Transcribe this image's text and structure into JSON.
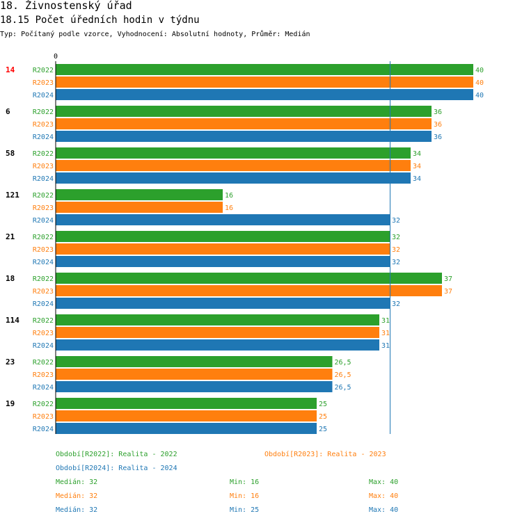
{
  "header": {
    "title": "18. Živnostenský úřad",
    "subtitle": "18.15 Počet úředních hodin v týdnu",
    "meta": "Typ: Počítaný podle vzorce, Vyhodnocení: Absolutní hodnoty, Průměr: Medián"
  },
  "colors": {
    "R2022": "#2ca02c",
    "R2023": "#ff7f0e",
    "R2024": "#1f77b4",
    "highlight": "#ff0000",
    "axis": "#000000"
  },
  "chart_data": {
    "type": "bar",
    "orientation": "horizontal",
    "axis_zero_label": "0",
    "xlim": [
      0,
      40
    ],
    "median_line": 32,
    "series_names": [
      "R2022",
      "R2023",
      "R2024"
    ],
    "categories": [
      "14",
      "6",
      "58",
      "121",
      "21",
      "18",
      "114",
      "23",
      "19"
    ],
    "highlighted_category": "14",
    "series": [
      {
        "name": "R2022",
        "values": [
          40,
          36,
          34,
          16,
          32,
          37,
          31,
          26.5,
          25
        ],
        "labels": [
          "40",
          "36",
          "34",
          "16",
          "32",
          "37",
          "31",
          "26,5",
          "25"
        ]
      },
      {
        "name": "R2023",
        "values": [
          40,
          36,
          34,
          16,
          32,
          37,
          31,
          26.5,
          25
        ],
        "labels": [
          "40",
          "36",
          "34",
          "16",
          "32",
          "37",
          "31",
          "26,5",
          "25"
        ]
      },
      {
        "name": "R2024",
        "values": [
          40,
          36,
          34,
          32,
          32,
          32,
          31,
          26.5,
          25
        ],
        "labels": [
          "40",
          "36",
          "34",
          "32",
          "32",
          "32",
          "31",
          "26,5",
          "25"
        ]
      }
    ]
  },
  "legend": {
    "periods": [
      {
        "text": "Období[R2022]: Realita - 2022"
      },
      {
        "text": "Období[R2023]: Realita - 2023"
      },
      {
        "text": "Období[R2024]: Realita - 2024"
      }
    ],
    "stats": [
      {
        "median": "Medián: 32",
        "min": "Min: 16",
        "max": "Max: 40"
      },
      {
        "median": "Medián: 32",
        "min": "Min: 16",
        "max": "Max: 40"
      },
      {
        "median": "Medián: 32",
        "min": "Min: 25",
        "max": "Max: 40"
      }
    ]
  }
}
